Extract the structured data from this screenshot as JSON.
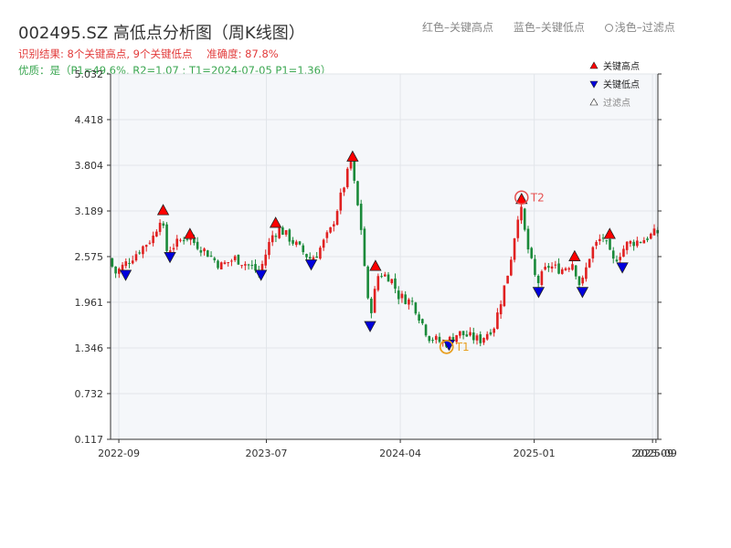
{
  "header": {
    "title": "002495.SZ 高低点分析图（周K线图）",
    "legend": [
      {
        "label": "红色–关键高点"
      },
      {
        "label": "蓝色–关键低点"
      },
      {
        "label": "浅色–过滤点"
      }
    ],
    "result_line": [
      "识别结果: 8个关键高点, 9个关键低点",
      "准确度: 87.8%"
    ],
    "quality_line": "优质：是（P1=49.6%, R2=1.07 ; T1=2024-07-05 P1=1.36）"
  },
  "colors": {
    "up": "#e02020",
    "down": "#1a8a3a",
    "high_marker": "#ff0000",
    "low_marker": "#0000dd",
    "plot_bg": "#f5f7fa",
    "grid": "#e2e5ea",
    "highlight_ring": "#e65050",
    "t1_ring": "#e8a020"
  },
  "chart_data": {
    "type": "candlestick",
    "ylim": [
      0.117,
      5.032
    ],
    "yticks": [
      "0.117",
      "0.732",
      "1.346",
      "1.961",
      "2.575",
      "3.189",
      "3.804",
      "4.418",
      "5.032"
    ],
    "x_range": [
      "2022-08-15",
      "2025-09-12"
    ],
    "xticks": [
      {
        "date": "2022-09-01",
        "label": "2022-09"
      },
      {
        "date": "2023-07-01",
        "label": "2023-07"
      },
      {
        "date": "2024-04-01",
        "label": "2024-04"
      },
      {
        "date": "2025-01-01",
        "label": "2025-01"
      },
      {
        "date": "2025-09-01",
        "label": "2025-09"
      },
      {
        "date": "2025-09-08",
        "label": "2025-09"
      }
    ],
    "price_path": [
      [
        "2022-08-15",
        2.55
      ],
      [
        "2022-08-28",
        2.35
      ],
      [
        "2022-10-15",
        2.65
      ],
      [
        "2022-11-15",
        2.85
      ],
      [
        "2022-12-01",
        3.15
      ],
      [
        "2022-12-10",
        2.65
      ],
      [
        "2023-01-01",
        2.75
      ],
      [
        "2023-01-20",
        2.85
      ],
      [
        "2023-03-01",
        2.65
      ],
      [
        "2023-04-01",
        2.45
      ],
      [
        "2023-05-01",
        2.55
      ],
      [
        "2023-06-01",
        2.45
      ],
      [
        "2023-06-20",
        2.35
      ],
      [
        "2023-07-15",
        2.85
      ],
      [
        "2023-08-01",
        2.95
      ],
      [
        "2023-09-01",
        2.75
      ],
      [
        "2023-10-01",
        2.55
      ],
      [
        "2023-10-15",
        2.6
      ],
      [
        "2023-11-15",
        2.95
      ],
      [
        "2023-12-25",
        3.85
      ],
      [
        "2024-01-15",
        2.95
      ],
      [
        "2024-02-01",
        1.75
      ],
      [
        "2024-02-20",
        2.35
      ],
      [
        "2024-03-15",
        2.3
      ],
      [
        "2024-04-01",
        2.05
      ],
      [
        "2024-05-01",
        1.95
      ],
      [
        "2024-06-01",
        1.5
      ],
      [
        "2024-07-05",
        1.4
      ],
      [
        "2024-08-01",
        1.55
      ],
      [
        "2024-09-15",
        1.45
      ],
      [
        "2024-10-15",
        1.65
      ],
      [
        "2024-11-15",
        2.45
      ],
      [
        "2024-12-06",
        3.3
      ],
      [
        "2024-12-20",
        2.75
      ],
      [
        "2025-01-10",
        2.2
      ],
      [
        "2025-02-01",
        2.45
      ],
      [
        "2025-03-01",
        2.4
      ],
      [
        "2025-03-25",
        2.5
      ],
      [
        "2025-04-10",
        2.15
      ],
      [
        "2025-05-01",
        2.65
      ],
      [
        "2025-05-25",
        2.85
      ],
      [
        "2025-06-15",
        2.5
      ],
      [
        "2025-07-15",
        2.75
      ],
      [
        "2025-08-15",
        2.8
      ],
      [
        "2025-09-12",
        2.9
      ]
    ],
    "key_highs": [
      {
        "date": "2022-12-01",
        "value": 3.2
      },
      {
        "date": "2023-01-25",
        "value": 2.88
      },
      {
        "date": "2023-07-20",
        "value": 3.03
      },
      {
        "date": "2023-12-25",
        "value": 3.92
      },
      {
        "date": "2024-02-10",
        "value": 2.45
      },
      {
        "date": "2024-12-06",
        "value": 3.35
      },
      {
        "date": "2025-03-25",
        "value": 2.58
      },
      {
        "date": "2025-06-05",
        "value": 2.88
      }
    ],
    "key_lows": [
      {
        "date": "2022-09-15",
        "value": 2.33
      },
      {
        "date": "2022-12-15",
        "value": 2.57
      },
      {
        "date": "2023-06-20",
        "value": 2.33
      },
      {
        "date": "2023-10-01",
        "value": 2.47
      },
      {
        "date": "2024-01-30",
        "value": 1.64
      },
      {
        "date": "2024-07-10",
        "value": 1.39
      },
      {
        "date": "2025-01-10",
        "value": 2.1
      },
      {
        "date": "2025-04-10",
        "value": 2.1
      },
      {
        "date": "2025-07-01",
        "value": 2.43
      }
    ],
    "annotations": [
      {
        "label": "T2",
        "date": "2024-12-06",
        "value": 3.37,
        "kind": "ring"
      },
      {
        "label": "T1",
        "date": "2024-07-05",
        "value": 1.36,
        "kind": "t1"
      }
    ],
    "legend": [
      {
        "label": "关键高点",
        "marker": "up"
      },
      {
        "label": "关键低点",
        "marker": "down"
      },
      {
        "label": "过滤点",
        "marker": "hollow"
      }
    ],
    "grid": true,
    "legend_position": "top-right"
  }
}
